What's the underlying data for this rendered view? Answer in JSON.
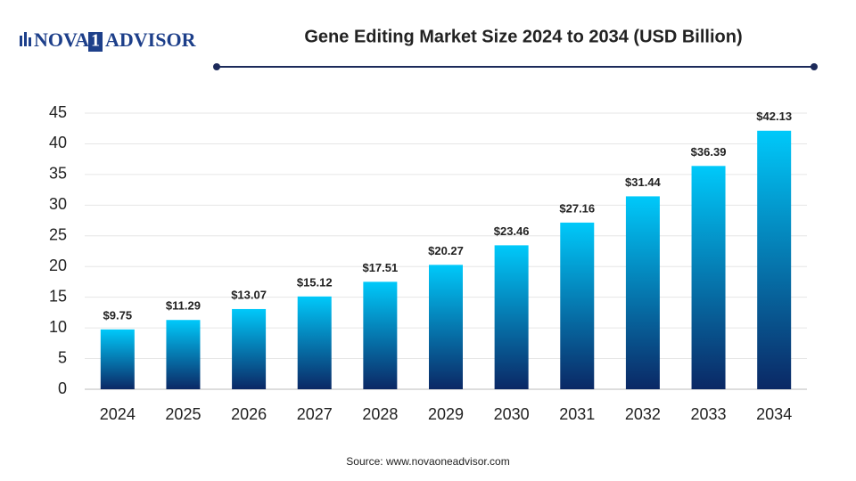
{
  "logo": {
    "left": "NOVA",
    "mark": "1",
    "right": "ADVISOR"
  },
  "chart_data": {
    "type": "bar",
    "title": "Gene Editing Market Size 2024 to 2034 (USD Billion)",
    "categories": [
      "2024",
      "2025",
      "2026",
      "2027",
      "2028",
      "2029",
      "2030",
      "2031",
      "2032",
      "2033",
      "2034"
    ],
    "values": [
      9.75,
      11.29,
      13.07,
      15.12,
      17.51,
      20.27,
      23.46,
      27.16,
      31.44,
      36.39,
      42.13
    ],
    "value_labels": [
      "$9.75",
      "$11.29",
      "$13.07",
      "$15.12",
      "$17.51",
      "$20.27",
      "$23.46",
      "$27.16",
      "$31.44",
      "$36.39",
      "$42.13"
    ],
    "gradient": [
      "#00c9fa",
      "#0b2865"
    ],
    "ylim": [
      0,
      45
    ],
    "yticks": [
      0,
      5,
      10,
      15,
      20,
      25,
      30,
      35,
      40,
      45
    ],
    "grid": true,
    "source": "Source: www.novaoneadvisor.com"
  }
}
